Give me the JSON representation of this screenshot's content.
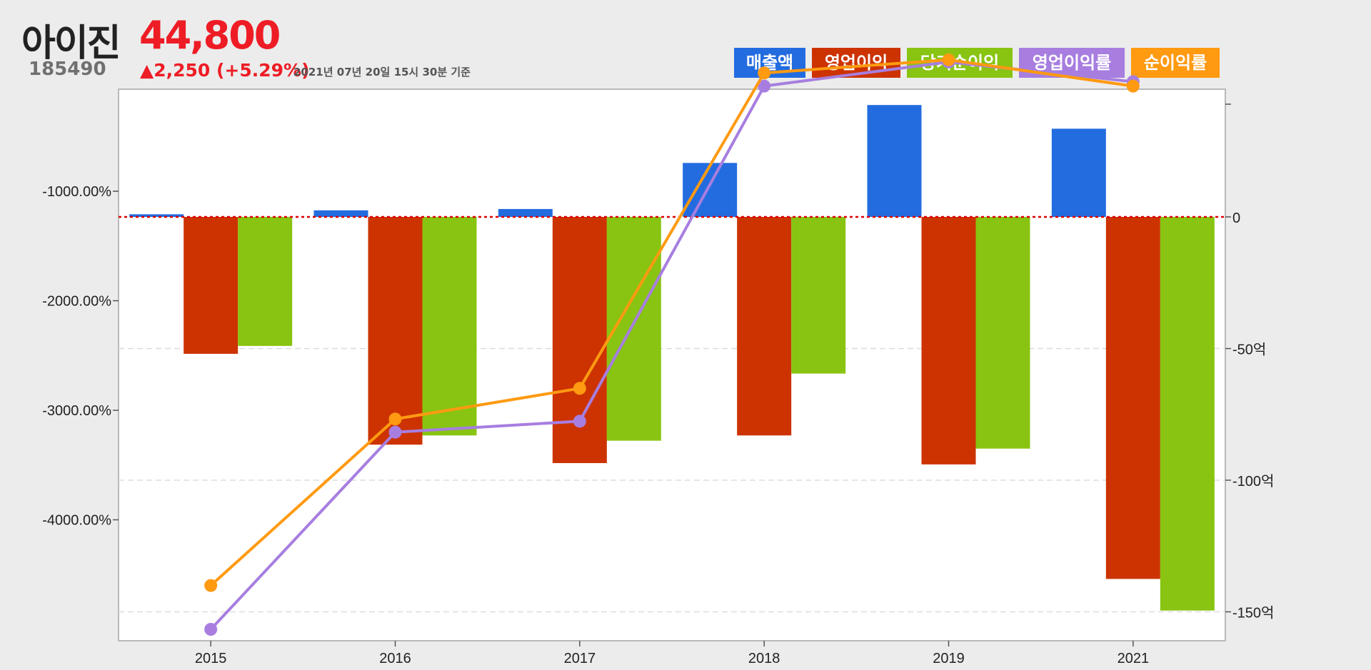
{
  "header": {
    "company_name": "아이진",
    "price": "44,800",
    "code": "185490",
    "change": "▲2,250 (+5.29%)",
    "timestamp": "2021년 07년 20일 15시 30분 기준"
  },
  "colors": {
    "background": "#ececec",
    "plot_background": "#ffffff",
    "revenue": "#226ce0",
    "operating_profit": "#cc3300",
    "net_income": "#88c411",
    "operating_margin": "#a77ee0",
    "net_margin": "#ff9a11",
    "zero_line": "#dd0000",
    "price_red": "#ee1c25"
  },
  "legend": [
    {
      "label": "매출액",
      "color": "#226ce0"
    },
    {
      "label": "영업이익",
      "color": "#cc3300"
    },
    {
      "label": "당기순이익",
      "color": "#88c411"
    },
    {
      "label": "영업이익률",
      "color": "#a77ee0"
    },
    {
      "label": "순이익률",
      "color": "#ff9a11"
    }
  ],
  "chart_data": {
    "type": "bar",
    "categories": [
      "2015",
      "2016",
      "2017",
      "2018",
      "2019",
      "2021"
    ],
    "series": [
      {
        "name": "매출액",
        "type": "bar",
        "axis": "right",
        "unit": "억",
        "color": "#226ce0",
        "values": [
          1,
          2.5,
          3,
          20.5,
          42.5,
          33.5
        ]
      },
      {
        "name": "영업이익",
        "type": "bar",
        "axis": "right",
        "unit": "억",
        "color": "#cc3300",
        "values": [
          -52,
          -86.5,
          -93.5,
          -83,
          -94,
          -137.5
        ]
      },
      {
        "name": "당기순이익",
        "type": "bar",
        "axis": "right",
        "unit": "억",
        "color": "#88c411",
        "values": [
          -49,
          -83,
          -85,
          -59.5,
          -88,
          -149.5
        ]
      },
      {
        "name": "영업이익률",
        "type": "line",
        "axis": "left",
        "unit": "%",
        "color": "#a77ee0",
        "values": [
          -5000,
          -3200,
          -3100,
          -40,
          180,
          0
        ]
      },
      {
        "name": "순이익률",
        "type": "line",
        "axis": "left",
        "unit": "%",
        "color": "#ff9a11",
        "values": [
          -4600,
          -3080,
          -2800,
          80,
          200,
          -40
        ]
      }
    ],
    "left_axis": {
      "ticks": [
        -1000,
        -2000,
        -3000,
        -4000
      ],
      "tick_labels": [
        "-1000.00%",
        "-2000.00%",
        "-3000.00%",
        "-4000.00%"
      ]
    },
    "right_axis": {
      "range": [
        -160,
        45
      ],
      "ticks": [
        0,
        -50,
        -100,
        -150
      ],
      "tick_labels": [
        "0",
        "-50억",
        "-100억",
        "-150억"
      ]
    },
    "grid": "horizontal dashed at right-axis ticks",
    "zero_line": "dotted red",
    "legend_position": "top-right"
  }
}
